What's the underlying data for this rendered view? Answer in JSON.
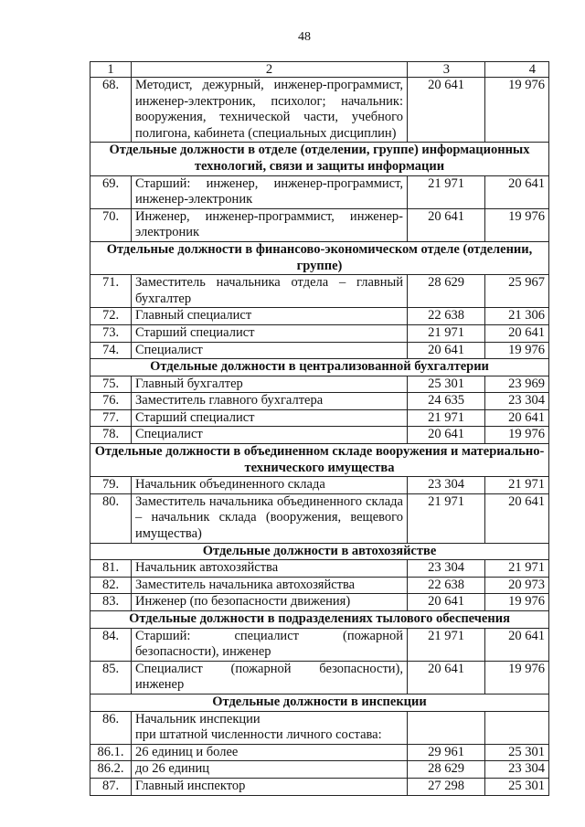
{
  "page_number": "48",
  "columns": [
    "1",
    "2",
    "3",
    "4"
  ],
  "rows": [
    {
      "type": "row",
      "num": "68.",
      "text": "Методист, дежурный, инженер-программист, инженер-электроник, психолог; начальник: вооружения, технической части, учебного полигона, кабинета (специальных дисциплин)",
      "c3": "20 641",
      "c4": "19 976"
    },
    {
      "type": "section",
      "text": "Отдельные должности в отделе (отделении, группе) информационных технологий, связи и защиты информации"
    },
    {
      "type": "row",
      "num": "69.",
      "text": "Старший: инженер, инженер-программист, инженер-электроник",
      "c3": "21 971",
      "c4": "20 641"
    },
    {
      "type": "row",
      "num": "70.",
      "text": "Инженер, инженер-программист, инженер-электроник",
      "c3": "20 641",
      "c4": "19 976"
    },
    {
      "type": "section",
      "text": "Отдельные должности в финансово-экономическом отделе (отделении, группе)"
    },
    {
      "type": "row",
      "num": "71.",
      "text": "Заместитель начальника отдела – главный бухгалтер",
      "c3": "28 629",
      "c4": "25 967"
    },
    {
      "type": "row",
      "num": "72.",
      "text": "Главный специалист",
      "c3": "22 638",
      "c4": "21 306"
    },
    {
      "type": "row",
      "num": "73.",
      "text": "Старший специалист",
      "c3": "21 971",
      "c4": "20 641"
    },
    {
      "type": "row",
      "num": "74.",
      "text": "Специалист",
      "c3": "20 641",
      "c4": "19 976"
    },
    {
      "type": "section",
      "text": "Отдельные должности в централизованной бухгалтерии"
    },
    {
      "type": "row",
      "num": "75.",
      "text": "Главный бухгалтер",
      "c3": "25 301",
      "c4": "23 969"
    },
    {
      "type": "row",
      "num": "76.",
      "text": "Заместитель главного бухгалтера",
      "c3": "24 635",
      "c4": "23 304"
    },
    {
      "type": "row",
      "num": "77.",
      "text": "Старший специалист",
      "c3": "21 971",
      "c4": "20 641"
    },
    {
      "type": "row",
      "num": "78.",
      "text": "Специалист",
      "c3": "20 641",
      "c4": "19 976"
    },
    {
      "type": "section",
      "text": "Отдельные должности в объединенном складе вооружения и материально-технического имущества"
    },
    {
      "type": "row",
      "num": "79.",
      "text": "Начальник объединенного склада",
      "c3": "23 304",
      "c4": "21 971"
    },
    {
      "type": "row",
      "num": "80.",
      "text": "Заместитель начальника объединенного склада – начальник склада (вооружения, вещевого имущества)",
      "c3": "21 971",
      "c4": "20 641"
    },
    {
      "type": "section",
      "text": "Отдельные должности в автохозяйстве"
    },
    {
      "type": "row",
      "num": "81.",
      "text": "Начальник автохозяйства",
      "c3": "23 304",
      "c4": "21 971"
    },
    {
      "type": "row",
      "num": "82.",
      "text": "Заместитель начальника автохозяйства",
      "c3": "22 638",
      "c4": "20 973"
    },
    {
      "type": "row",
      "num": "83.",
      "text": "Инженер (по безопасности движения)",
      "c3": "20 641",
      "c4": "19 976"
    },
    {
      "type": "section",
      "text": "Отдельные должности в подразделениях тылового обеспечения"
    },
    {
      "type": "row",
      "num": "84.",
      "text": "Старший: специалист (пожарной безопасности), инженер",
      "c3": "21 971",
      "c4": "20 641"
    },
    {
      "type": "row",
      "num": "85.",
      "text": "Специалист (пожарной безопасности), инженер",
      "c3": "20 641",
      "c4": "19 976"
    },
    {
      "type": "section",
      "text": "Отдельные должности в инспекции"
    },
    {
      "type": "row",
      "num": "86.",
      "text": "Начальник инспекции\nпри штатной численности личного состава:",
      "c3": "",
      "c4": ""
    },
    {
      "type": "row",
      "num": "86.1.",
      "text": "26 единиц и более",
      "c3": "29 961",
      "c4": "25 301"
    },
    {
      "type": "row",
      "num": "86.2.",
      "text": "до 26 единиц",
      "c3": "28 629",
      "c4": "23 304"
    },
    {
      "type": "row",
      "num": "87.",
      "text": "Главный инспектор",
      "c3": "27 298",
      "c4": "25 301"
    }
  ]
}
